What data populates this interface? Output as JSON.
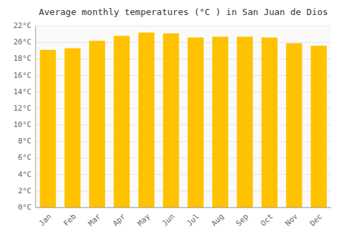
{
  "chart_data": {
    "type": "bar",
    "title": "Average monthly temperatures (°C ) in San Juan de Dios",
    "categories": [
      "Jan",
      "Feb",
      "Mar",
      "Apr",
      "May",
      "Jun",
      "Jul",
      "Aug",
      "Sep",
      "Oct",
      "Nov",
      "Dec"
    ],
    "values": [
      19.1,
      19.3,
      20.2,
      20.8,
      21.2,
      21.1,
      20.6,
      20.7,
      20.7,
      20.6,
      19.9,
      19.6
    ],
    "color": "#FFC200",
    "ylim": [
      0,
      22
    ],
    "yticks": [
      {
        "value": 0,
        "label": "0°C"
      },
      {
        "value": 2,
        "label": "2°C"
      },
      {
        "value": 4,
        "label": "4°C"
      },
      {
        "value": 6,
        "label": "6°C"
      },
      {
        "value": 8,
        "label": "8°C"
      },
      {
        "value": 10,
        "label": "10°C"
      },
      {
        "value": 12,
        "label": "12°C"
      },
      {
        "value": 14,
        "label": "14°C"
      },
      {
        "value": 16,
        "label": "16°C"
      },
      {
        "value": 18,
        "label": "18°C"
      },
      {
        "value": 20,
        "label": "20°C"
      },
      {
        "value": 22,
        "label": "22°C"
      }
    ],
    "grid": true
  }
}
